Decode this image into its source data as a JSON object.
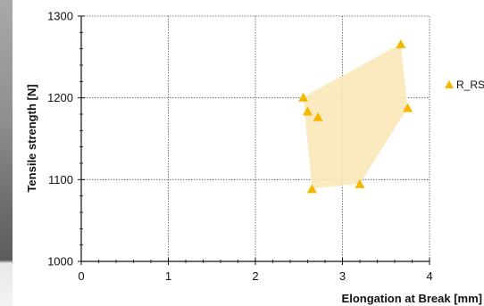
{
  "chart_data": {
    "type": "scatter",
    "title": "",
    "xlabel": "Elongation at Break [mm]",
    "ylabel": "Tensile strength [N]",
    "xlim": [
      0,
      4
    ],
    "ylim": [
      1000,
      1300
    ],
    "x_ticks": [
      0,
      1,
      2,
      3,
      4
    ],
    "y_ticks": [
      1000,
      1100,
      1200,
      1300
    ],
    "x_tick_labels": [
      "0",
      "1",
      "2",
      "3",
      "4"
    ],
    "y_tick_labels": [
      "1000",
      "1100",
      "1200",
      "1300"
    ],
    "grid": true,
    "legend_position": "right",
    "series": [
      {
        "name": "R_RS",
        "color": "#f5b800",
        "marker": "triangle",
        "points": [
          {
            "x": 2.55,
            "y": 1201
          },
          {
            "x": 2.6,
            "y": 1184
          },
          {
            "x": 2.72,
            "y": 1177
          },
          {
            "x": 3.67,
            "y": 1266
          },
          {
            "x": 3.75,
            "y": 1188
          },
          {
            "x": 2.65,
            "y": 1089
          },
          {
            "x": 3.2,
            "y": 1095
          }
        ],
        "hull": true,
        "hull_color": "#fbe8b8"
      }
    ]
  }
}
